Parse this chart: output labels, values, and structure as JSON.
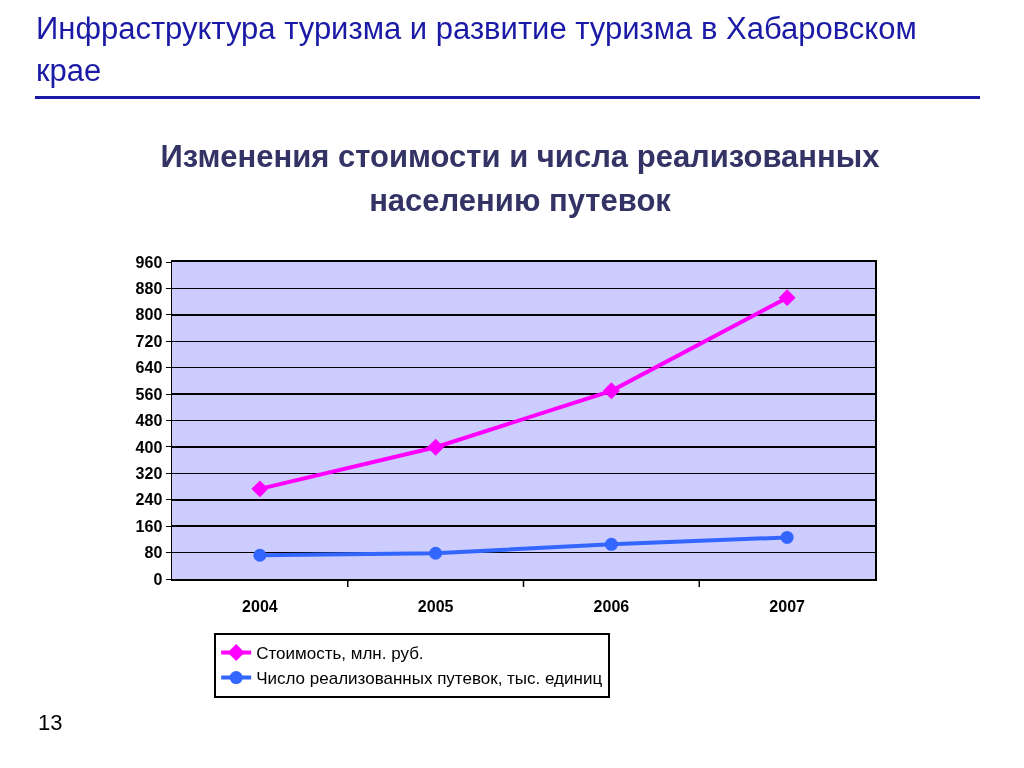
{
  "chart_data": {
    "type": "line",
    "title": "Инфраструктура туризма и развитие туризма в Хабаровском крае",
    "subtitle": "Изменения стоимости и числа реализованных населению путевок",
    "annotations": [
      "13"
    ],
    "categories": [
      "2004",
      "2005",
      "2006",
      "2007"
    ],
    "series": [
      {
        "name": "Стоимость, млн. руб.",
        "color": "#ff00ff",
        "marker": "diamond",
        "values": [
          273,
          399,
          570,
          852
        ]
      },
      {
        "name": "Число реализованных путевок, тыс. единиц",
        "color": "#3366ff",
        "marker": "circle",
        "values": [
          72,
          78,
          105,
          126
        ]
      }
    ],
    "ylim": [
      0,
      960
    ],
    "yticks": [
      0,
      80,
      160,
      240,
      320,
      400,
      480,
      560,
      640,
      720,
      800,
      880,
      960
    ],
    "grid": "y",
    "legend": "bottom",
    "line_style": "solid"
  }
}
